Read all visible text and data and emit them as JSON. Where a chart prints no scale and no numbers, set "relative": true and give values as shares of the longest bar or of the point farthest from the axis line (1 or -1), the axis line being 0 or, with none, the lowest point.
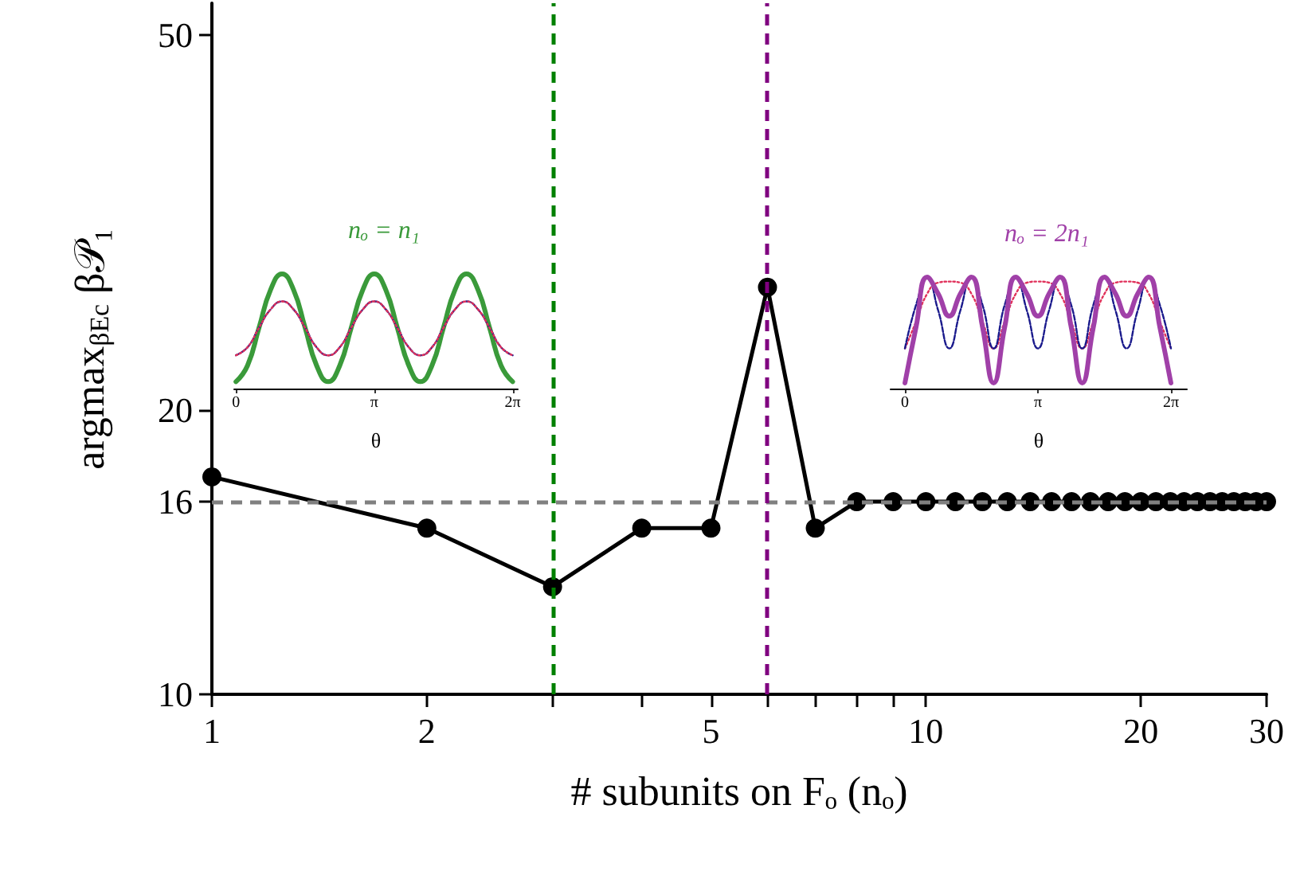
{
  "chart_data": [
    {
      "type": "line",
      "xlabel": "# subunits on Fₒ (nₒ)",
      "ylabel": "argmax$_{βEc}$ β𝒫₁",
      "log": "xy",
      "grid": false,
      "marker": "circle",
      "line_style": "solid",
      "x": [
        1,
        2,
        3,
        4,
        5,
        6,
        7,
        8,
        9,
        10,
        11,
        12,
        13,
        14,
        15,
        16,
        17,
        18,
        19,
        20,
        21,
        22,
        23,
        24,
        25,
        26,
        27,
        28,
        29,
        30
      ],
      "series": [
        {
          "color": "#000000",
          "values": [
            17,
            15,
            13,
            15,
            15,
            27,
            15,
            16,
            16,
            16,
            16,
            16,
            16,
            16,
            16,
            16,
            16,
            16,
            16,
            16,
            16,
            16,
            16,
            16,
            16,
            16,
            16,
            16,
            16,
            16
          ]
        }
      ],
      "xlim": [
        1,
        30
      ],
      "ylim": [
        10,
        54
      ],
      "xticks": [
        1,
        2,
        {
          "value": 3,
          "label": null
        },
        {
          "value": 4,
          "label": null
        },
        5,
        {
          "value": 6,
          "label": null
        },
        {
          "value": 7,
          "label": null
        },
        {
          "value": 8,
          "label": null
        },
        {
          "value": 9,
          "label": null
        },
        10,
        20,
        30
      ],
      "yticks": [
        10,
        16,
        20,
        50
      ],
      "ref_lines": [
        {
          "axis": "y",
          "value": 16,
          "color": "#808080",
          "line_style": "dashed"
        },
        {
          "axis": "x",
          "value": 3,
          "color": "#008000",
          "line_style": "dashed"
        },
        {
          "axis": "x",
          "value": 6,
          "color": "#800080",
          "line_style": "dashed"
        }
      ]
    },
    {
      "type": "line",
      "title": "nₒ = n₁",
      "xlabel": "θ",
      "relative": true,
      "tick_labels": "x",
      "grid": false,
      "marker": "none",
      "x": [
        0,
        0.2618,
        0.5236,
        0.7854,
        1.0472,
        1.309,
        1.5708,
        1.8326,
        2.0944,
        2.3562,
        2.618,
        2.8798,
        3.1416,
        3.4034,
        3.6652,
        3.927,
        4.1888,
        4.4506,
        4.7124,
        4.9742,
        5.236,
        5.4978,
        5.7596,
        6.0214,
        6.2832
      ],
      "xlim": [
        -0.04,
        6.4
      ],
      "xticks": [
        {
          "value": 0,
          "label": "0"
        },
        {
          "value": 3.1416,
          "label": "π"
        },
        {
          "value": 6.2832,
          "label": "2π"
        }
      ],
      "series": [
        {
          "color": "#3a9a3a",
          "line_style": "solid",
          "values": [
            0.06,
            0.2,
            0.53,
            0.86,
            1,
            0.86,
            0.53,
            0.2,
            0.06,
            0.2,
            0.53,
            0.86,
            1,
            0.86,
            0.53,
            0.2,
            0.06,
            0.2,
            0.53,
            0.86,
            1,
            0.86,
            0.53,
            0.2,
            0.06
          ]
        },
        {
          "color": "#1a1a8c",
          "line_style": "dashed",
          "values": [
            0.29,
            0.36,
            0.53,
            0.69,
            0.76,
            0.69,
            0.53,
            0.36,
            0.29,
            0.36,
            0.53,
            0.69,
            0.76,
            0.69,
            0.53,
            0.36,
            0.29,
            0.36,
            0.53,
            0.69,
            0.76,
            0.69,
            0.53,
            0.36,
            0.29
          ]
        },
        {
          "color": "#e0305a",
          "line_style": "dotted",
          "values": [
            0.29,
            0.36,
            0.53,
            0.69,
            0.76,
            0.69,
            0.53,
            0.36,
            0.29,
            0.36,
            0.53,
            0.69,
            0.76,
            0.69,
            0.53,
            0.36,
            0.29,
            0.36,
            0.53,
            0.69,
            0.76,
            0.69,
            0.53,
            0.36,
            0.29
          ]
        }
      ]
    },
    {
      "type": "line",
      "title": "nₒ = 2n₁",
      "xlabel": "θ",
      "relative": true,
      "tick_labels": "x",
      "grid": false,
      "marker": "none",
      "x": [
        0,
        0.2618,
        0.5236,
        0.7854,
        1.0472,
        1.309,
        1.5708,
        1.8326,
        2.0944,
        2.3562,
        2.618,
        2.8798,
        3.1416,
        3.4034,
        3.6652,
        3.927,
        4.1888,
        4.4506,
        4.7124,
        4.9742,
        5.236,
        5.4978,
        5.7596,
        6.0214,
        6.2832
      ],
      "xlim": [
        -0.34,
        6.66
      ],
      "xticks": [
        {
          "value": 0,
          "label": "0"
        },
        {
          "value": 3.1416,
          "label": "π"
        },
        {
          "value": 6.2832,
          "label": "2π"
        }
      ],
      "series": [
        {
          "color": "#e0305a",
          "line_style": "dotted",
          "values": [
            0.36,
            0.6,
            0.85,
            0.95,
            0.96,
            0.95,
            0.85,
            0.6,
            0.36,
            0.6,
            0.85,
            0.95,
            0.96,
            0.95,
            0.85,
            0.6,
            0.36,
            0.6,
            0.85,
            0.95,
            0.96,
            0.95,
            0.85,
            0.6,
            0.36
          ]
        },
        {
          "color": "#1a1a8c",
          "line_style": "dashed",
          "values": [
            0.36,
            0.75,
            0.99,
            0.7,
            0.36,
            0.7,
            0.99,
            0.75,
            0.36,
            0.75,
            0.99,
            0.7,
            0.36,
            0.7,
            0.99,
            0.75,
            0.36,
            0.75,
            0.99,
            0.7,
            0.36,
            0.7,
            0.99,
            0.75,
            0.36
          ]
        },
        {
          "color": "#a040a8",
          "line_style": "solid",
          "values": [
            0.05,
            0.55,
            1,
            0.85,
            0.65,
            0.85,
            1,
            0.55,
            0.05,
            0.55,
            1,
            0.85,
            0.65,
            0.85,
            1,
            0.55,
            0.05,
            0.55,
            1,
            0.85,
            0.65,
            0.85,
            1,
            0.55,
            0.05
          ]
        }
      ]
    }
  ]
}
